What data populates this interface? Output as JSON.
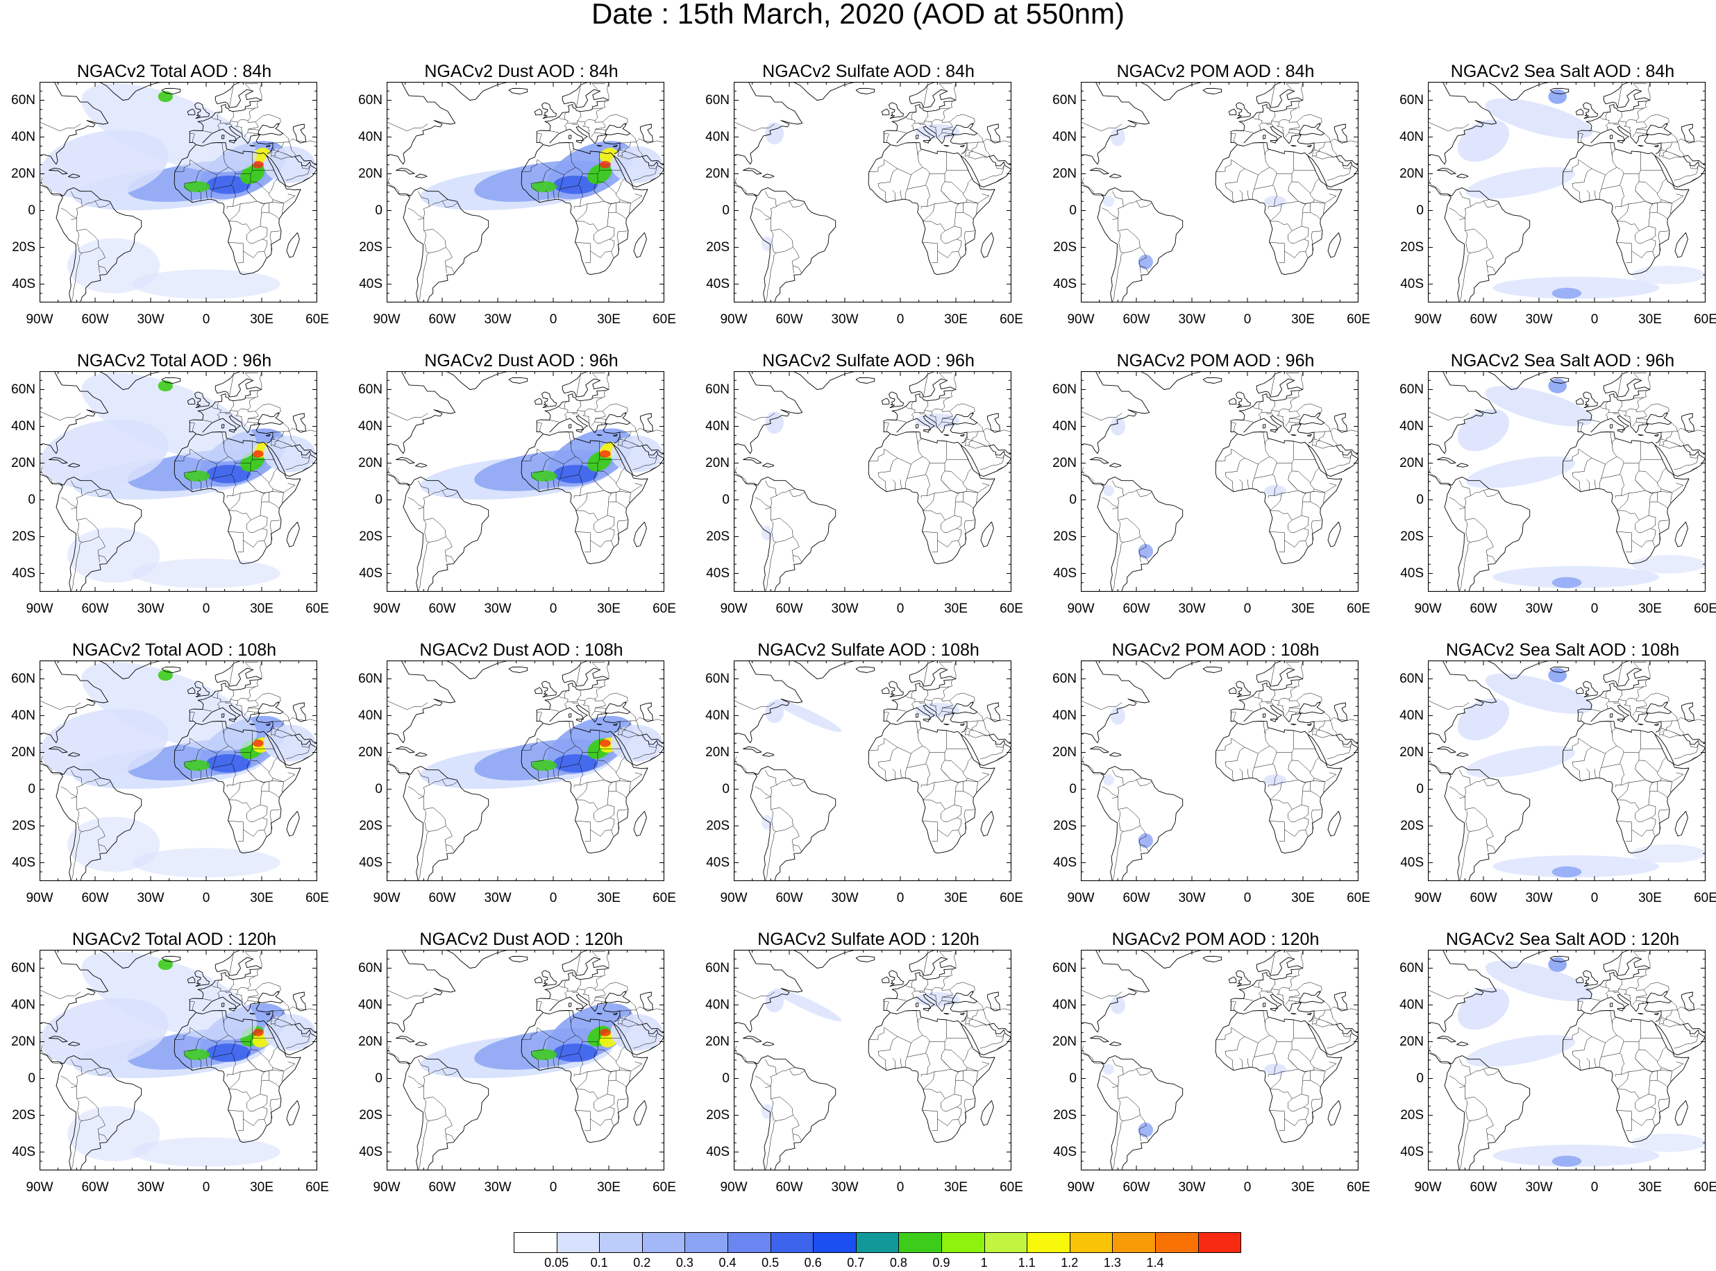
{
  "title": "Date : 15th March, 2020 (AOD at 550nm)",
  "lat_tick_labels": [
    "60N",
    "40N",
    "20N",
    "0",
    "20S",
    "40S"
  ],
  "lon_tick_labels": [
    "90W",
    "60W",
    "30W",
    "0",
    "30E",
    "60E"
  ],
  "rows": [
    {
      "lead": "84h",
      "titles": [
        "NGACv2 Total AOD : 84h",
        "NGACv2 Dust AOD : 84h",
        "NGACv2 Sulfate AOD : 84h",
        "NGACv2 POM AOD : 84h",
        "NGACv2 Sea Salt AOD : 84h"
      ]
    },
    {
      "lead": "96h",
      "titles": [
        "NGACv2 Total AOD : 96h",
        "NGACv2 Dust AOD : 96h",
        "NGACv2 Sulfate AOD : 96h",
        "NGACv2 POM AOD : 96h",
        "NGACv2 Sea Salt AOD : 96h"
      ]
    },
    {
      "lead": "108h",
      "titles": [
        "NGACv2 Total AOD : 108h",
        "NGACv2 Dust AOD : 108h",
        "NGACv2 Sulfate AOD : 108h",
        "NGACv2 POM AOD : 108h",
        "NGACv2 Sea Salt AOD : 108h"
      ]
    },
    {
      "lead": "120h",
      "titles": [
        "NGACv2 Total AOD : 120h",
        "NGACv2 Dust AOD : 120h",
        "NGACv2 Sulfate AOD : 120h",
        "NGACv2 POM AOD : 120h",
        "NGACv2 Sea Salt  AOD : 120h"
      ]
    }
  ],
  "colorbar": {
    "labels": [
      "0.05",
      "0.1",
      "0.2",
      "0.3",
      "0.4",
      "0.5",
      "0.6",
      "0.7",
      "0.8",
      "0.9",
      "1",
      "1.1",
      "1.2",
      "1.3",
      "1.4"
    ],
    "colors": [
      "#ffffff",
      "#d8e1fd",
      "#bccdfb",
      "#a3b8f8",
      "#8aa3f5",
      "#6a86f0",
      "#3d64ec",
      "#1b4ff2",
      "#11999a",
      "#3ccc19",
      "#8ef20c",
      "#c2f53f",
      "#f8f80a",
      "#f9c308",
      "#f99b06",
      "#f97304",
      "#f82a12"
    ]
  },
  "legend_colors": {
    "low": "#d8e1fd",
    "mid": "#8aa3f5",
    "high": "#3d64ec",
    "green": "#3ccc19",
    "yellow": "#f8f80a",
    "red": "#f82a12"
  }
}
